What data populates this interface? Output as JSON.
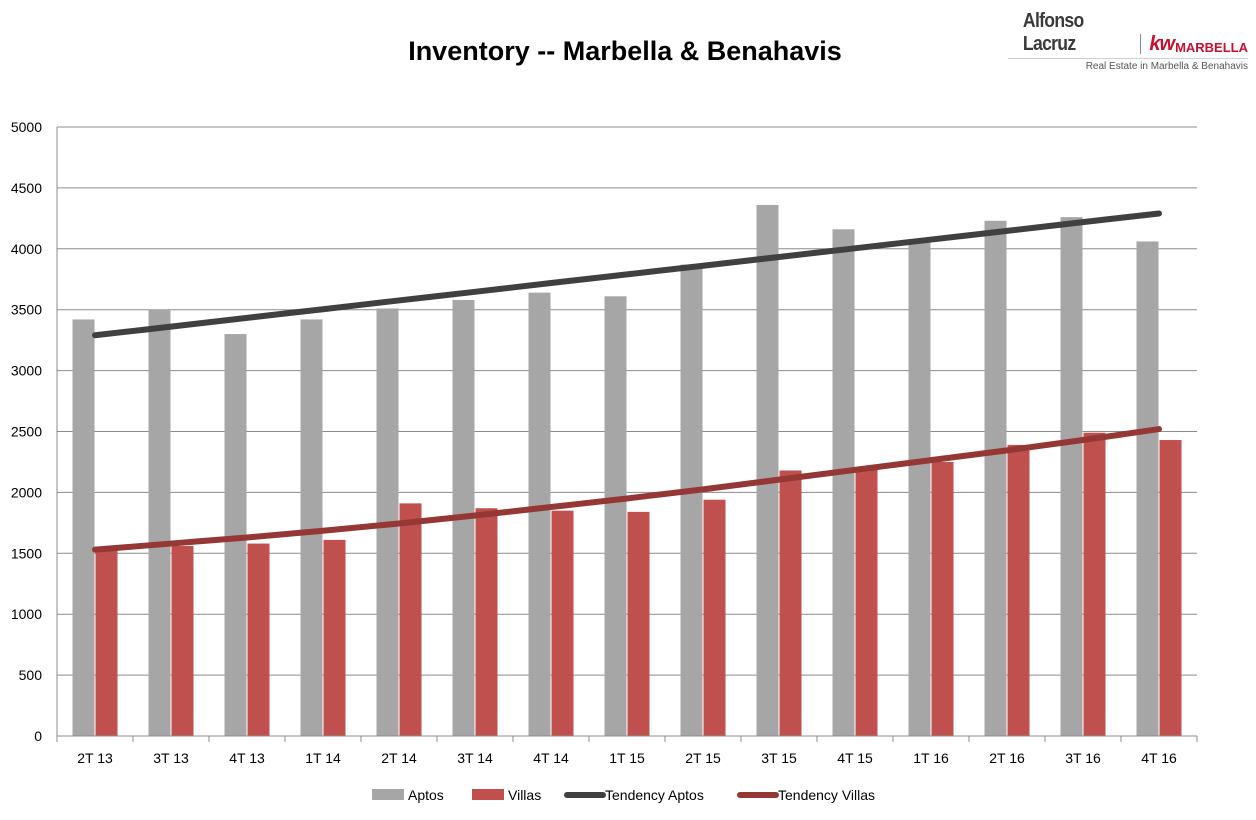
{
  "brand": {
    "name": "Alfonso Lacruz",
    "kw": "kw",
    "office": "MARBELLA",
    "tagline": "Real Estate in Marbella & Benahavis"
  },
  "chart_data": {
    "type": "bar",
    "title": "Inventory -- Marbella & Benahavis",
    "xlabel": "",
    "ylabel": "",
    "ylim": [
      0,
      5000
    ],
    "yticks": [
      0,
      500,
      1000,
      1500,
      2000,
      2500,
      3000,
      3500,
      4000,
      4500,
      5000
    ],
    "grid": true,
    "legend_position": "bottom",
    "categories": [
      "2T 13",
      "3T 13",
      "4T 13",
      "1T 14",
      "2T 14",
      "3T 14",
      "4T 14",
      "1T 15",
      "2T 15",
      "3T 15",
      "4T 15",
      "1T 16",
      "2T 16",
      "3T 16",
      "4T 16"
    ],
    "series": [
      {
        "name": "Aptos",
        "type": "bar",
        "color": "#a6a6a6",
        "values": [
          3420,
          3500,
          3300,
          3420,
          3510,
          3580,
          3640,
          3610,
          3870,
          4360,
          4160,
          4080,
          4230,
          4260,
          4060
        ]
      },
      {
        "name": "Villas",
        "type": "bar",
        "color": "#c0504d",
        "values": [
          1530,
          1560,
          1580,
          1610,
          1910,
          1870,
          1850,
          1840,
          1940,
          2180,
          2210,
          2250,
          2390,
          2490,
          2430
        ]
      },
      {
        "name": "Tendency Aptos",
        "type": "line",
        "color": "#404040",
        "values": [
          3290,
          3361,
          3433,
          3504,
          3576,
          3647,
          3719,
          3790,
          3861,
          3933,
          4004,
          4076,
          4147,
          4219,
          4290
        ]
      },
      {
        "name": "Tendency Villas",
        "type": "line",
        "color": "#953735",
        "values": [
          1530,
          1580,
          1630,
          1685,
          1745,
          1810,
          1880,
          1950,
          2025,
          2105,
          2185,
          2265,
          2345,
          2430,
          2520
        ]
      }
    ]
  }
}
